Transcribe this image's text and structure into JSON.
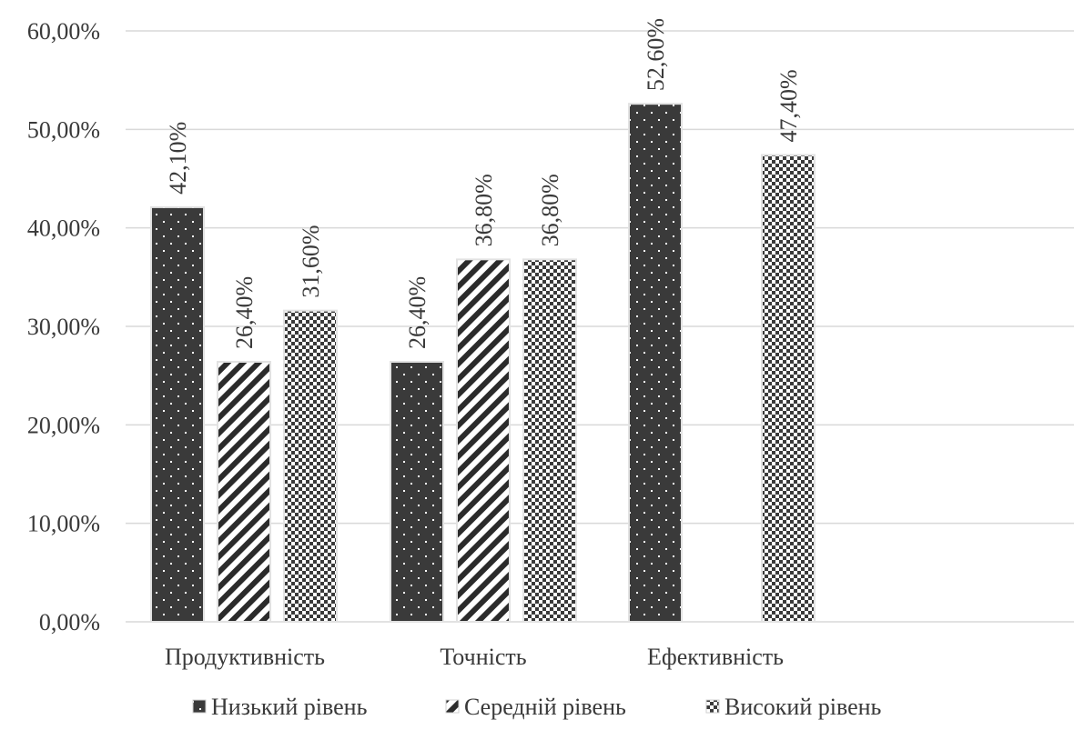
{
  "chart_data": {
    "type": "bar",
    "title": "",
    "xlabel": "",
    "ylabel": "",
    "categories": [
      "Продуктивність",
      "Точність",
      "Ефективність"
    ],
    "series": [
      {
        "name": "Низький рівень",
        "values": [
          0.421,
          0.264,
          0.526
        ],
        "labels": [
          "42,10%",
          "26,40%",
          "52,60%"
        ],
        "color": "#3a3a3a",
        "pattern": "dark-dots"
      },
      {
        "name": "Середній рівень",
        "values": [
          0.264,
          0.368,
          null
        ],
        "labels": [
          "26,40%",
          "36,80%",
          ""
        ],
        "color": "#2b2b2b",
        "pattern": "diagonal-stripes"
      },
      {
        "name": "Високий рівень",
        "values": [
          0.316,
          0.368,
          0.474
        ],
        "labels": [
          "31,60%",
          "36,80%",
          "47,40%"
        ],
        "color": "#3a3a3a",
        "pattern": "checker-dots"
      }
    ],
    "ylim": [
      0,
      0.6
    ],
    "yticks": [
      0,
      0.1,
      0.2,
      0.3,
      0.4,
      0.5,
      0.6
    ],
    "ytick_labels": [
      "0,00%",
      "10,00%",
      "20,00%",
      "30,00%",
      "40,00%",
      "50,00%",
      "60,00%"
    ],
    "grid": true,
    "legend_position": "bottom"
  }
}
